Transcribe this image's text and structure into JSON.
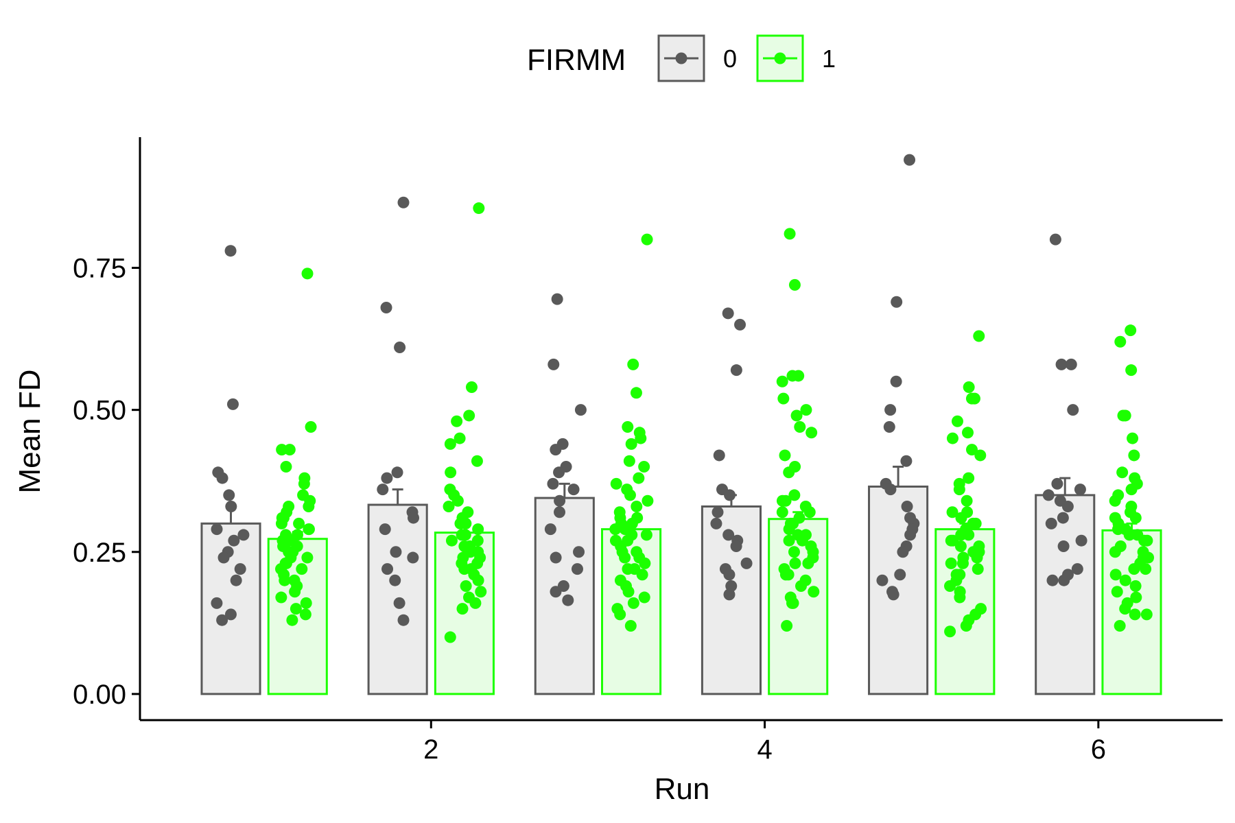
{
  "chart_data": {
    "type": "bar",
    "xlabel": "Run",
    "ylabel": "Mean FD",
    "x_ticks": [
      "2",
      "4",
      "6"
    ],
    "y_ticks": [
      "0.00",
      "0.25",
      "0.50",
      "0.75"
    ],
    "ylim": [
      -0.046,
      0.98
    ],
    "xlim": [
      0.255,
      6.745
    ],
    "grid": false,
    "legend": {
      "title": "FIRMM",
      "position": "top",
      "entries": [
        {
          "label": "0",
          "color": "#595959",
          "fill": "#ececec"
        },
        {
          "label": "1",
          "color": "#1cff00",
          "fill": "#e7fde4"
        }
      ]
    },
    "runs": [
      1,
      2,
      3,
      4,
      5,
      6
    ],
    "series": [
      {
        "name": "0",
        "color": "#595959",
        "fill": "#ececec",
        "values": [
          0.3,
          0.333,
          0.345,
          0.33,
          0.365,
          0.35
        ],
        "error_upper": [
          0.33,
          0.36,
          0.37,
          0.35,
          0.4,
          0.38
        ],
        "points": [
          [
            0.78,
            0.51,
            0.39,
            0.38,
            0.35,
            0.33,
            0.29,
            0.28,
            0.27,
            0.25,
            0.24,
            0.22,
            0.2,
            0.16,
            0.14,
            0.13
          ],
          [
            0.865,
            0.68,
            0.61,
            0.39,
            0.38,
            0.36,
            0.32,
            0.31,
            0.29,
            0.25,
            0.24,
            0.22,
            0.2,
            0.16,
            0.13
          ],
          [
            0.695,
            0.58,
            0.5,
            0.44,
            0.43,
            0.4,
            0.39,
            0.37,
            0.36,
            0.34,
            0.32,
            0.29,
            0.25,
            0.24,
            0.22,
            0.19,
            0.18,
            0.165
          ],
          [
            0.67,
            0.65,
            0.57,
            0.42,
            0.36,
            0.35,
            0.32,
            0.3,
            0.28,
            0.27,
            0.26,
            0.23,
            0.22,
            0.21,
            0.19,
            0.175
          ],
          [
            0.94,
            0.69,
            0.55,
            0.5,
            0.47,
            0.41,
            0.37,
            0.36,
            0.33,
            0.31,
            0.3,
            0.29,
            0.28,
            0.26,
            0.25,
            0.21,
            0.2,
            0.18,
            0.175
          ],
          [
            0.8,
            0.58,
            0.58,
            0.5,
            0.37,
            0.36,
            0.35,
            0.34,
            0.33,
            0.31,
            0.3,
            0.27,
            0.26,
            0.22,
            0.21,
            0.2,
            0.2
          ]
        ]
      },
      {
        "name": "1",
        "color": "#1cff00",
        "fill": "#e7fde4",
        "values": [
          0.273,
          0.284,
          0.29,
          0.308,
          0.29,
          0.288
        ],
        "error_upper": [
          0.285,
          0.295,
          0.3,
          0.32,
          0.3,
          0.3
        ],
        "points": [
          [
            0.74,
            0.47,
            0.43,
            0.43,
            0.4,
            0.38,
            0.37,
            0.35,
            0.34,
            0.33,
            0.33,
            0.32,
            0.31,
            0.31,
            0.3,
            0.3,
            0.29,
            0.29,
            0.28,
            0.28,
            0.27,
            0.27,
            0.26,
            0.26,
            0.25,
            0.25,
            0.24,
            0.24,
            0.23,
            0.23,
            0.22,
            0.22,
            0.21,
            0.2,
            0.2,
            0.19,
            0.18,
            0.17,
            0.16,
            0.15,
            0.14,
            0.13
          ],
          [
            0.855,
            0.54,
            0.49,
            0.48,
            0.45,
            0.44,
            0.41,
            0.39,
            0.36,
            0.35,
            0.34,
            0.33,
            0.32,
            0.31,
            0.3,
            0.3,
            0.29,
            0.28,
            0.28,
            0.27,
            0.27,
            0.26,
            0.26,
            0.25,
            0.25,
            0.24,
            0.24,
            0.23,
            0.23,
            0.22,
            0.22,
            0.21,
            0.2,
            0.19,
            0.18,
            0.17,
            0.16,
            0.15,
            0.1
          ],
          [
            0.8,
            0.58,
            0.53,
            0.47,
            0.46,
            0.45,
            0.44,
            0.41,
            0.4,
            0.38,
            0.37,
            0.36,
            0.35,
            0.34,
            0.33,
            0.32,
            0.31,
            0.31,
            0.3,
            0.3,
            0.29,
            0.29,
            0.28,
            0.28,
            0.27,
            0.27,
            0.26,
            0.25,
            0.25,
            0.24,
            0.24,
            0.23,
            0.22,
            0.22,
            0.21,
            0.2,
            0.19,
            0.18,
            0.17,
            0.16,
            0.15,
            0.14,
            0.12
          ],
          [
            0.81,
            0.72,
            0.56,
            0.56,
            0.55,
            0.52,
            0.5,
            0.49,
            0.47,
            0.46,
            0.42,
            0.4,
            0.39,
            0.35,
            0.34,
            0.34,
            0.33,
            0.32,
            0.32,
            0.31,
            0.3,
            0.3,
            0.29,
            0.28,
            0.28,
            0.27,
            0.27,
            0.26,
            0.25,
            0.25,
            0.24,
            0.23,
            0.23,
            0.22,
            0.21,
            0.21,
            0.2,
            0.19,
            0.18,
            0.17,
            0.16,
            0.16,
            0.12
          ],
          [
            0.63,
            0.54,
            0.52,
            0.52,
            0.48,
            0.46,
            0.45,
            0.43,
            0.42,
            0.38,
            0.37,
            0.36,
            0.34,
            0.32,
            0.32,
            0.31,
            0.3,
            0.3,
            0.29,
            0.29,
            0.28,
            0.28,
            0.27,
            0.27,
            0.26,
            0.26,
            0.25,
            0.25,
            0.24,
            0.24,
            0.23,
            0.23,
            0.22,
            0.21,
            0.21,
            0.2,
            0.19,
            0.18,
            0.17,
            0.15,
            0.14,
            0.13,
            0.12,
            0.11
          ],
          [
            0.64,
            0.62,
            0.57,
            0.49,
            0.49,
            0.45,
            0.42,
            0.39,
            0.38,
            0.37,
            0.36,
            0.35,
            0.34,
            0.33,
            0.32,
            0.31,
            0.31,
            0.3,
            0.29,
            0.29,
            0.28,
            0.28,
            0.27,
            0.27,
            0.26,
            0.25,
            0.25,
            0.24,
            0.24,
            0.23,
            0.22,
            0.22,
            0.21,
            0.2,
            0.19,
            0.18,
            0.17,
            0.16,
            0.15,
            0.14,
            0.14,
            0.12
          ]
        ]
      }
    ]
  }
}
